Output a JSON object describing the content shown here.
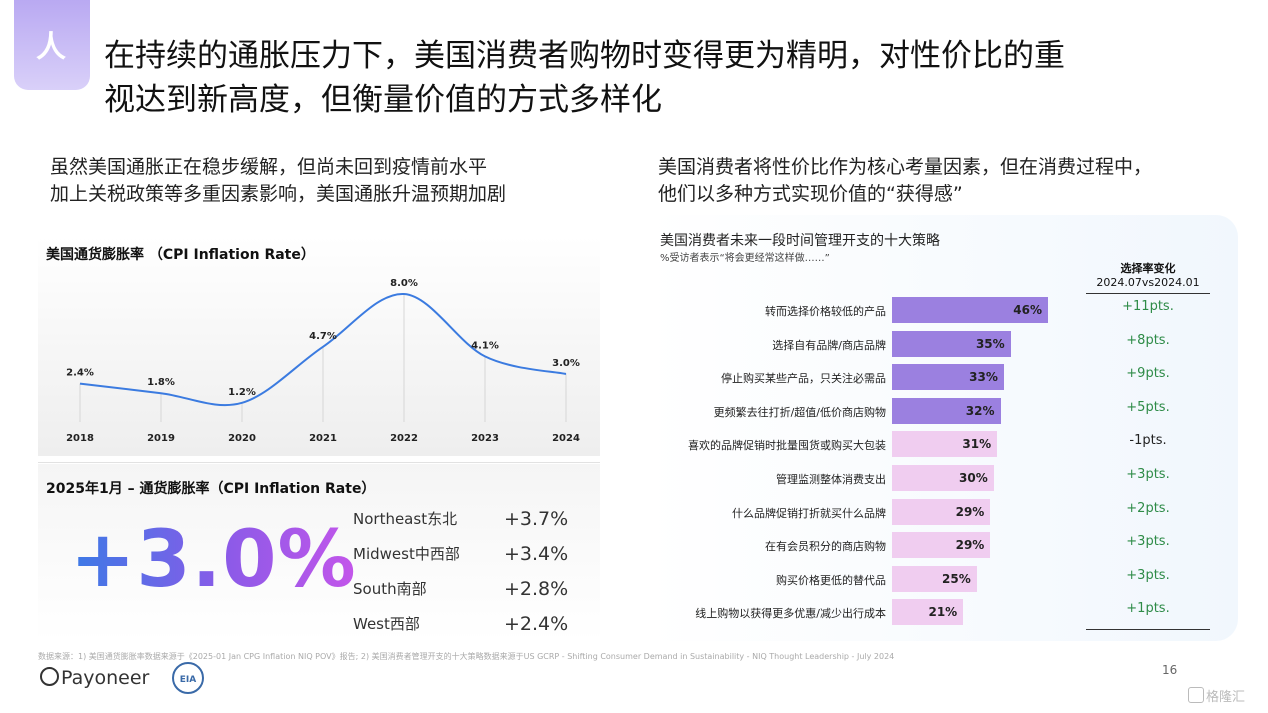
{
  "badge": {
    "text": "人"
  },
  "title": {
    "line1": "在持续的通胀压力下，美国消费者购物时变得更为精明，对性价比的重",
    "line2": "视达到新高度，但衡量价值的方式多样化"
  },
  "left": {
    "subhead_line1": "虽然美国通胀正在稳步缓解，但尚未回到疫情前水平",
    "subhead_line2": "加上关税政策等多重因素影响，美国通胀升温预期加剧"
  },
  "right": {
    "subhead_line1": "美国消费者将性价比作为核心考量因素，但在消费过程中，",
    "subhead_line2": "他们以多种方式实现价值的“获得感”"
  },
  "chart_data": [
    {
      "type": "line",
      "title": "美国通货膨胀率 （CPI Inflation Rate）",
      "x": [
        "2018",
        "2019",
        "2020",
        "2021",
        "2022",
        "2023",
        "2024"
      ],
      "values": [
        2.4,
        1.8,
        1.2,
        4.7,
        8.0,
        4.1,
        3.0
      ],
      "data_labels": [
        "2.4%",
        "1.8%",
        "1.2%",
        "4.7%",
        "8.0%",
        "4.1%",
        "3.0%"
      ],
      "ylim": [
        0,
        9
      ],
      "smooth": true,
      "grid": false,
      "color": "#3b7be0"
    },
    {
      "type": "bar",
      "orientation": "horizontal",
      "title": "美国消费者未来一段时间管理开支的十大策略",
      "subtitle": "%受访者表示“将会更经常这样做……”",
      "categories": [
        "转而选择价格较低的产品",
        "选择自有品牌/商店品牌",
        "停止购买某些产品，只关注必需品",
        "更频繁去往打折/超值/低价商店购物",
        "喜欢的品牌促销时批量囤货或购买大包装",
        "管理监测整体消费支出",
        "什么品牌促销打折就买什么品牌",
        "在有会员积分的商店购物",
        "购买价格更低的替代品",
        "线上购物以获得更多优惠/减少出行成本"
      ],
      "values": [
        46,
        35,
        33,
        32,
        31,
        30,
        29,
        29,
        25,
        21
      ],
      "value_labels": [
        "46%",
        "35%",
        "33%",
        "32%",
        "31%",
        "30%",
        "29%",
        "29%",
        "25%",
        "21%"
      ],
      "change_header": "选择率变化",
      "change_subheader": "2024.07vs2024.01",
      "changes": [
        "+11pts.",
        "+8pts.",
        "+9pts.",
        "+5pts.",
        "-1pts.",
        "+3pts.",
        "+2pts.",
        "+3pts.",
        "+3pts.",
        "+1pts."
      ],
      "highlight_count": 4,
      "colors": {
        "highlight": "#9b80e0",
        "normal": "#f0cdf0",
        "positive": "#2e8b47",
        "negative": "#222222"
      }
    }
  ],
  "jan": {
    "title": "2025年1月 – 通货膨胀率（CPI Inflation Rate）",
    "headline": "+3.0%",
    "regions": [
      {
        "name": "Northeast东北",
        "value": "+3.7%"
      },
      {
        "name": "Midwest中西部",
        "value": "+3.4%"
      },
      {
        "name": "South南部",
        "value": "+2.8%"
      },
      {
        "name": "West西部",
        "value": "+2.4%"
      }
    ]
  },
  "footer": {
    "source": "数据来源：1) 美国通货膨胀率数据来源于《2025-01 Jan CPG Inflation NIQ POV》报告; 2) 美国消费者管理开支的十大策略数据来源于US GCRP - Shifting Consumer Demand in Sustainability - NIQ Thought Leadership - July 2024",
    "page": "16",
    "logo_text": "Payoneer",
    "eia_text": "EIA",
    "watermark": "格隆汇"
  }
}
